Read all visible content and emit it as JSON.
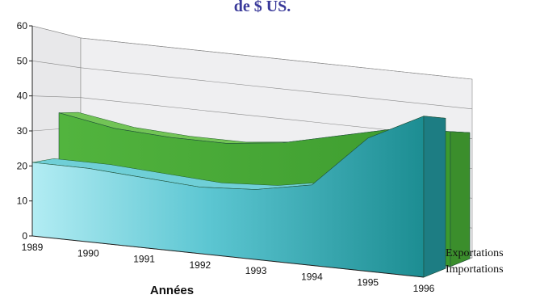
{
  "chart_data": {
    "type": "area",
    "title": "de $ US.",
    "xlabel": "Années",
    "ylabel": "",
    "ylim": [
      0,
      60
    ],
    "yticks": [
      "0",
      "10",
      "20",
      "30",
      "40",
      "50",
      "60"
    ],
    "categories": [
      "1989",
      "1990",
      "1991",
      "1992",
      "1993",
      "1994",
      "1995",
      "1996"
    ],
    "series": [
      {
        "name": "Exportations",
        "values": [
          35,
          32,
          31,
          31,
          33,
          37,
          41,
          42
        ]
      },
      {
        "name": "Importations",
        "values": [
          21,
          21,
          20,
          19,
          20,
          23,
          38,
          46
        ]
      }
    ],
    "grid": true,
    "legend": "right",
    "colors": {
      "exportations": "#4caf3a",
      "importations": "#31b3b8",
      "importations_light": "#a4e6ef",
      "walls": "#e8e8ea"
    }
  }
}
